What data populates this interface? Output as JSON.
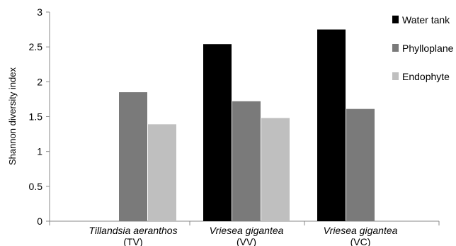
{
  "chart_data": {
    "type": "bar",
    "title": "",
    "ylabel": "Shannon diversity index",
    "xlabel": "",
    "ylim": [
      0,
      3
    ],
    "yticks": [
      "0",
      "0.5",
      "1",
      "1.5",
      "2",
      "2.5",
      "3"
    ],
    "categories": [
      {
        "name": "Tillandsia aeranthos",
        "code": "(TV)"
      },
      {
        "name": "Vriesea gigantea",
        "code": "(VV)"
      },
      {
        "name": "Vriesea gigantea",
        "code": "(VC)"
      }
    ],
    "series": [
      {
        "name": "Water tank",
        "color": "#000000",
        "values": [
          null,
          2.54,
          2.75
        ]
      },
      {
        "name": "Phylloplane",
        "color": "#7a7a7a",
        "values": [
          1.85,
          1.72,
          1.61
        ]
      },
      {
        "name": "Endophyte",
        "color": "#bfbfbf",
        "values": [
          1.39,
          1.48,
          null
        ]
      }
    ],
    "legend_position": "right",
    "grid": false
  }
}
